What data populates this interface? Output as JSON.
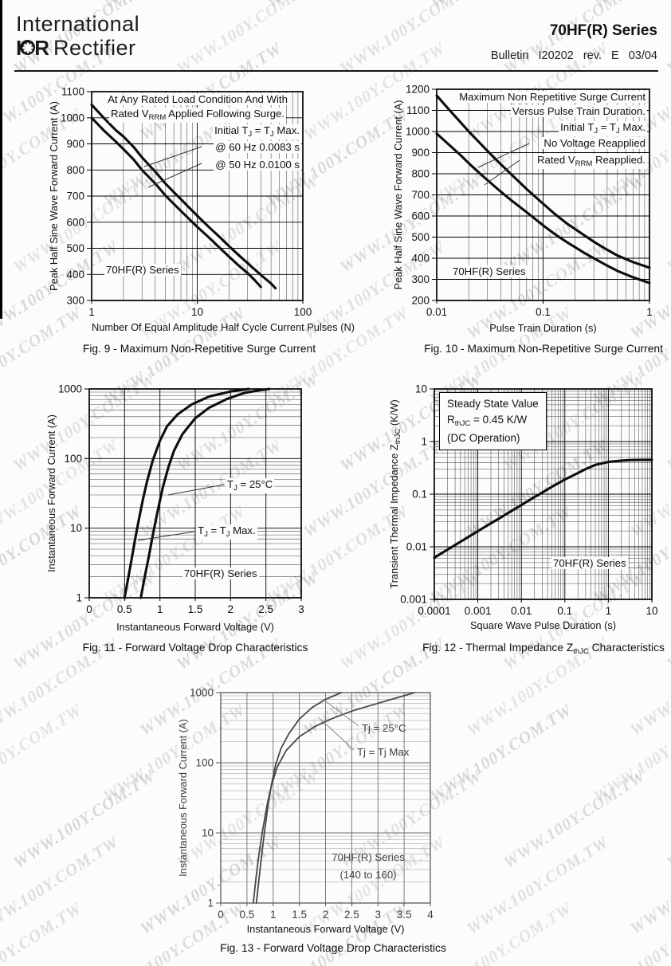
{
  "header": {
    "brand_line1": "International",
    "brand_i": "I",
    "brand_r": "R",
    "brand_line2": "Rectifier",
    "title": "70HF(R) Series",
    "bulletin": "Bulletin I20202 rev. E 03/04"
  },
  "watermark": {
    "text": "WWW.100Y.COM.TW"
  },
  "chart_data": [
    {
      "id": "fig9",
      "type": "line",
      "caption": "Fig. 9 - Maximum Non-Repetitive Surge Current",
      "xlabel": "Number Of Equal Amplitude Half Cycle Current Pulses (N)",
      "ylabel": "Peak Half Sine Wave Forward Current (A)",
      "xscale": "log",
      "xlim": [
        1,
        100
      ],
      "xticks": [
        "1",
        "10",
        "100"
      ],
      "yscale": "linear",
      "ylim": [
        300,
        1100
      ],
      "yticks": [
        "300",
        "400",
        "500",
        "600",
        "700",
        "800",
        "900",
        "1000",
        "1100"
      ],
      "series": [
        {
          "name": "@ 60 Hz 0.0083 s",
          "points": [
            [
              1,
              1050
            ],
            [
              1.3,
              1000
            ],
            [
              1.7,
              952
            ],
            [
              2,
              928
            ],
            [
              2.5,
              888
            ],
            [
              3,
              848
            ],
            [
              4,
              793
            ],
            [
              5,
              748
            ],
            [
              6,
              715
            ],
            [
              7,
              688
            ],
            [
              8,
              664
            ],
            [
              10,
              625
            ],
            [
              13,
              580
            ],
            [
              16,
              546
            ],
            [
              20,
              508
            ],
            [
              25,
              472
            ],
            [
              30,
              443
            ],
            [
              40,
              398
            ],
            [
              50,
              365
            ],
            [
              55,
              347
            ]
          ]
        },
        {
          "name": "@ 50 Hz 0.0100 s",
          "points": [
            [
              1,
              1000
            ],
            [
              1.3,
              952
            ],
            [
              1.7,
              908
            ],
            [
              2,
              880
            ],
            [
              2.5,
              840
            ],
            [
              3,
              800
            ],
            [
              4,
              748
            ],
            [
              5,
              702
            ],
            [
              6,
              670
            ],
            [
              7,
              643
            ],
            [
              8,
              620
            ],
            [
              10,
              582
            ],
            [
              13,
              540
            ],
            [
              16,
              505
            ],
            [
              20,
              468
            ],
            [
              25,
              432
            ],
            [
              30,
              405
            ],
            [
              35,
              378
            ],
            [
              40,
              352
            ]
          ]
        }
      ],
      "ann": {
        "line1": "At Any Rated Load Condition And With",
        "line2_pre": "Rated V",
        "line2_sub": "RRM",
        "line2_post": " Applied Following Surge.",
        "line3_pre": "Initial T",
        "line3_sub1": "J",
        "line3_mid": " = T",
        "line3_sub2": "J",
        "line3_post": " Max.",
        "line4": "@ 60 Hz 0.0083 s",
        "line5": "@ 50 Hz 0.0100 s",
        "series_label": "70HF(R) Series"
      }
    },
    {
      "id": "fig10",
      "type": "line",
      "caption": "Fig. 10 - Maximum Non-Repetitive Surge Current",
      "xlabel": "Pulse Train Duration (s)",
      "ylabel": "Peak Half Sine Wave Forward Current (A)",
      "xscale": "log",
      "xlim": [
        0.01,
        1
      ],
      "xticks": [
        "0.01",
        "0.1",
        "1"
      ],
      "yscale": "linear",
      "ylim": [
        200,
        1200
      ],
      "yticks": [
        "200",
        "300",
        "400",
        "500",
        "600",
        "700",
        "800",
        "900",
        "1000",
        "1100",
        "1200"
      ],
      "series": [
        {
          "name": "No Voltage Reapplied",
          "points": [
            [
              0.01,
              1170
            ],
            [
              0.013,
              1105
            ],
            [
              0.017,
              1040
            ],
            [
              0.02,
              1000
            ],
            [
              0.025,
              950
            ],
            [
              0.03,
              908
            ],
            [
              0.04,
              845
            ],
            [
              0.05,
              798
            ],
            [
              0.07,
              728
            ],
            [
              0.1,
              658
            ],
            [
              0.13,
              608
            ],
            [
              0.17,
              562
            ],
            [
              0.2,
              538
            ],
            [
              0.25,
              505
            ],
            [
              0.3,
              478
            ],
            [
              0.4,
              440
            ],
            [
              0.5,
              413
            ],
            [
              0.7,
              382
            ],
            [
              1,
              355
            ]
          ]
        },
        {
          "name": "Rated VRRM Reapplied",
          "points": [
            [
              0.01,
              990
            ],
            [
              0.013,
              938
            ],
            [
              0.017,
              885
            ],
            [
              0.02,
              850
            ],
            [
              0.025,
              805
            ],
            [
              0.03,
              770
            ],
            [
              0.04,
              715
            ],
            [
              0.05,
              675
            ],
            [
              0.07,
              618
            ],
            [
              0.1,
              556
            ],
            [
              0.13,
              513
            ],
            [
              0.17,
              474
            ],
            [
              0.2,
              452
            ],
            [
              0.25,
              422
            ],
            [
              0.3,
              400
            ],
            [
              0.4,
              365
            ],
            [
              0.5,
              340
            ],
            [
              0.7,
              310
            ],
            [
              1,
              283
            ]
          ]
        }
      ],
      "ann": {
        "line1": "Maximum Non Repetitive Surge Current",
        "line2": "Versus Pulse Train Duration.",
        "line3_pre": "Initial T",
        "line3_sub1": "J",
        "line3_mid": " = T",
        "line3_sub2": "J",
        "line3_post": " Max.",
        "line4": "No Voltage Reapplied",
        "line5_pre": "Rated V",
        "line5_sub": "RRM",
        "line5_post": " Reapplied.",
        "series_label": "70HF(R) Series"
      }
    },
    {
      "id": "fig11",
      "type": "line",
      "caption": "Fig. 11 - Forward Voltage Drop Characteristics",
      "xlabel": "Instantaneous Forward Voltage (V)",
      "ylabel": "Instantaneous Forward Current (A)",
      "xscale": "linear",
      "xlim": [
        0,
        3
      ],
      "xticks": [
        "0",
        "0.5",
        "1",
        "1.5",
        "2",
        "2.5",
        "3"
      ],
      "yscale": "log",
      "ylim": [
        1,
        1000
      ],
      "yticks": [
        "1",
        "10",
        "100",
        "1000"
      ],
      "series": [
        {
          "name": "TJ = TJ Max.",
          "points": [
            [
              0.5,
              1
            ],
            [
              0.55,
              1.9
            ],
            [
              0.6,
              3.6
            ],
            [
              0.65,
              7
            ],
            [
              0.7,
              13
            ],
            [
              0.76,
              26
            ],
            [
              0.82,
              48
            ],
            [
              0.9,
              95
            ],
            [
              1.0,
              180
            ],
            [
              1.1,
              290
            ],
            [
              1.25,
              430
            ],
            [
              1.45,
              600
            ],
            [
              1.7,
              780
            ],
            [
              2.0,
              920
            ],
            [
              2.26,
              1000
            ]
          ]
        },
        {
          "name": "TJ = 25°C",
          "points": [
            [
              0.73,
              1
            ],
            [
              0.78,
              1.9
            ],
            [
              0.84,
              3.8
            ],
            [
              0.9,
              8
            ],
            [
              0.97,
              18
            ],
            [
              1.04,
              38
            ],
            [
              1.12,
              75
            ],
            [
              1.2,
              130
            ],
            [
              1.32,
              225
            ],
            [
              1.5,
              380
            ],
            [
              1.7,
              540
            ],
            [
              1.95,
              720
            ],
            [
              2.2,
              880
            ],
            [
              2.42,
              960
            ],
            [
              2.55,
              1000
            ]
          ]
        }
      ],
      "ann": {
        "t25_pre": "T",
        "t25_sub": "J",
        "t25_post": " = 25°C",
        "tmax_pre": "T",
        "tmax_sub1": "J",
        "tmax_mid": " = T",
        "tmax_sub2": "J",
        "tmax_post": " Max.",
        "series_label": "70HF(R) Series"
      }
    },
    {
      "id": "fig12",
      "type": "line",
      "caption_pre": "Fig. 12 - Thermal Impedance Z",
      "caption_sub": "thJC",
      "caption_post": " Characteristics",
      "xlabel": "Square Wave Pulse Duration (s)",
      "ylabel_pre": "Transient Thermal Impedance Z",
      "ylabel_sub": "thJC",
      "ylabel_post": " (K/W)",
      "xscale": "log",
      "xlim": [
        0.0001,
        10
      ],
      "xticks": [
        "0.0001",
        "0.001",
        "0.01",
        "0.1",
        "1",
        "10"
      ],
      "yscale": "log",
      "ylim": [
        0.001,
        10
      ],
      "yticks": [
        "0.001",
        "0.01",
        "0.1",
        "1",
        "10"
      ],
      "series": [
        {
          "name": "ZthJC",
          "points": [
            [
              0.0001,
              0.0062
            ],
            [
              0.0002,
              0.0088
            ],
            [
              0.0003,
              0.0108
            ],
            [
              0.0005,
              0.014
            ],
            [
              0.001,
              0.0198
            ],
            [
              0.002,
              0.028
            ],
            [
              0.003,
              0.034
            ],
            [
              0.005,
              0.044
            ],
            [
              0.01,
              0.062
            ],
            [
              0.02,
              0.088
            ],
            [
              0.03,
              0.107
            ],
            [
              0.05,
              0.138
            ],
            [
              0.1,
              0.19
            ],
            [
              0.2,
              0.252
            ],
            [
              0.3,
              0.3
            ],
            [
              0.5,
              0.36
            ],
            [
              1,
              0.41
            ],
            [
              2,
              0.435
            ],
            [
              3,
              0.443
            ],
            [
              5,
              0.448
            ],
            [
              10,
              0.45
            ]
          ]
        }
      ],
      "ann": {
        "box1": "Steady State Value",
        "box2_pre": "R",
        "box2_sub": "thJC",
        "box2_post": " = 0.45 K/W",
        "box3": "(DC Operation)",
        "series_label": "70HF(R) Series"
      }
    },
    {
      "id": "fig13",
      "type": "line",
      "caption": "Fig. 13 - Forward Voltage Drop Characteristics",
      "xlabel": "Instantaneous Forward Voltage (V)",
      "ylabel": "Instantaneous Forward Current (A)",
      "xscale": "linear",
      "xlim": [
        0,
        4
      ],
      "xticks": [
        "0",
        "0.5",
        "1",
        "1.5",
        "2",
        "2.5",
        "3",
        "3.5",
        "4"
      ],
      "yscale": "log",
      "ylim": [
        1,
        1000
      ],
      "yticks": [
        "1",
        "10",
        "100",
        "1000"
      ],
      "series": [
        {
          "name": "Tj = 25°C",
          "points": [
            [
              0.68,
              1
            ],
            [
              0.73,
              2.2
            ],
            [
              0.78,
              4.8
            ],
            [
              0.84,
              11
            ],
            [
              0.9,
              24
            ],
            [
              0.97,
              50
            ],
            [
              1.05,
              95
            ],
            [
              1.15,
              160
            ],
            [
              1.3,
              260
            ],
            [
              1.5,
              420
            ],
            [
              1.75,
              620
            ],
            [
              2.0,
              800
            ],
            [
              2.3,
              1000
            ]
          ]
        },
        {
          "name": "Tj = Tj Max",
          "points": [
            [
              0.62,
              1
            ],
            [
              0.67,
              2.2
            ],
            [
              0.73,
              5
            ],
            [
              0.8,
              11
            ],
            [
              0.88,
              24
            ],
            [
              0.97,
              48
            ],
            [
              1.08,
              88
            ],
            [
              1.25,
              150
            ],
            [
              1.5,
              235
            ],
            [
              1.8,
              330
            ],
            [
              2.1,
              420
            ],
            [
              2.5,
              545
            ],
            [
              2.9,
              670
            ],
            [
              3.3,
              820
            ],
            [
              3.7,
              1000
            ]
          ]
        }
      ],
      "ann": {
        "t25": "Tj = 25°C",
        "tmax": "Tj = Tj Max",
        "series_label": "70HF(R) Series",
        "series_sub": "(140 to 160)"
      }
    }
  ]
}
